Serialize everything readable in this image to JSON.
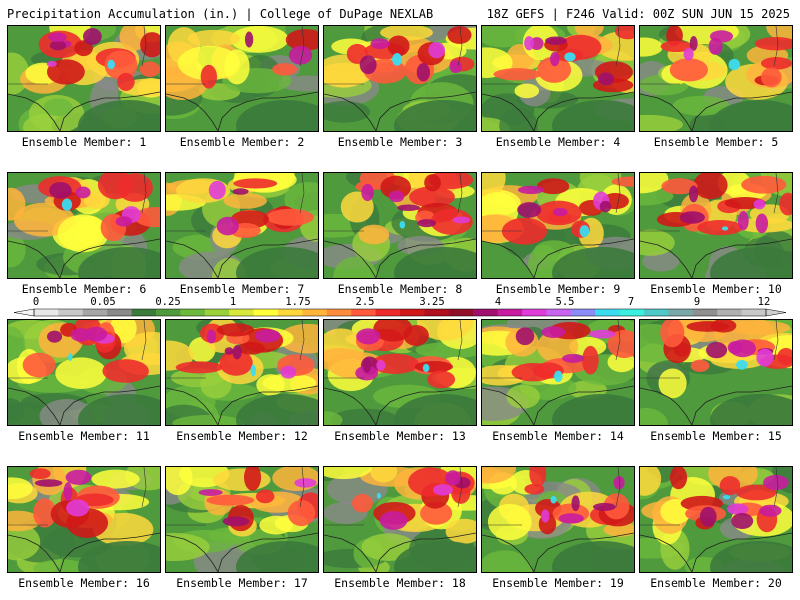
{
  "header": {
    "title_left": "Precipitation Accumulation (in.) | College of DuPage NEXLAB",
    "title_right": "18Z GEFS | F246 Valid: 00Z SUN JUN 15 2025"
  },
  "colorbar": {
    "labels": [
      "0",
      "0.05",
      "0.25",
      "1",
      "1.75",
      "2.5",
      "3.25",
      "4",
      "5.5",
      "7",
      "9",
      "12"
    ],
    "colors": [
      "#e8e8e8",
      "#c8c8c8",
      "#a6a6a6",
      "#8a8a8a",
      "#3c7a3c",
      "#4e9a3c",
      "#6cb83c",
      "#9ad03c",
      "#d8e83c",
      "#ffff3c",
      "#ffd83c",
      "#ffb43c",
      "#ff8c3c",
      "#ff5a3c",
      "#ee2c2c",
      "#d01818",
      "#b01020",
      "#901028",
      "#a0106c",
      "#c81ca0",
      "#e03cd8",
      "#c864f0",
      "#8c8cf8",
      "#3cdcf0",
      "#3cf0e0",
      "#50c8c8",
      "#78a8a8",
      "#909090",
      "#b0b0b0",
      "#c8c8c8"
    ]
  },
  "panels": [
    {
      "label": "Ensemble Member: 1",
      "intensity": 0.75
    },
    {
      "label": "Ensemble Member: 2",
      "intensity": 0.3
    },
    {
      "label": "Ensemble Member: 3",
      "intensity": 0.8
    },
    {
      "label": "Ensemble Member: 4",
      "intensity": 0.8
    },
    {
      "label": "Ensemble Member: 5",
      "intensity": 0.7
    },
    {
      "label": "Ensemble Member: 6",
      "intensity": 0.7
    },
    {
      "label": "Ensemble Member: 7",
      "intensity": 0.55
    },
    {
      "label": "Ensemble Member: 8",
      "intensity": 0.85
    },
    {
      "label": "Ensemble Member: 9",
      "intensity": 0.8
    },
    {
      "label": "Ensemble Member: 10",
      "intensity": 0.85
    },
    {
      "label": "Ensemble Member: 11",
      "intensity": 0.7
    },
    {
      "label": "Ensemble Member: 12",
      "intensity": 0.75
    },
    {
      "label": "Ensemble Member: 13",
      "intensity": 0.75
    },
    {
      "label": "Ensemble Member: 14",
      "intensity": 0.7
    },
    {
      "label": "Ensemble Member: 15",
      "intensity": 0.85
    },
    {
      "label": "Ensemble Member: 16",
      "intensity": 0.65
    },
    {
      "label": "Ensemble Member: 17",
      "intensity": 0.55
    },
    {
      "label": "Ensemble Member: 18",
      "intensity": 0.7
    },
    {
      "label": "Ensemble Member: 19",
      "intensity": 0.75
    },
    {
      "label": "Ensemble Member: 20",
      "intensity": 0.75
    }
  ]
}
